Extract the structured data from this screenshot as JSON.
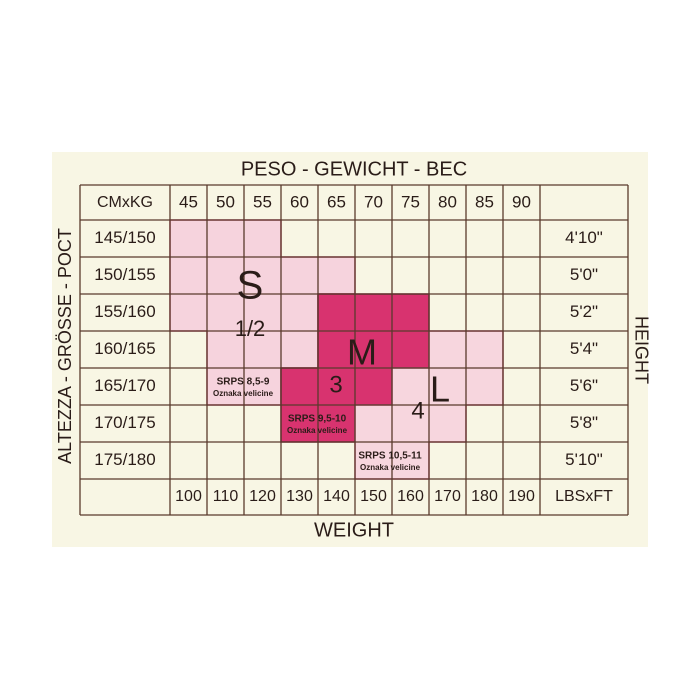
{
  "header": {
    "title": "PESO - GEWICHT - BEC",
    "footer": "WEIGHT",
    "left": "ALTEZZA - GRÖSSE - POCT",
    "right": "HEIGHT"
  },
  "table": {
    "corner": "CMxKG",
    "unit": "LBSxFT",
    "kg": [
      "45",
      "50",
      "55",
      "60",
      "65",
      "70",
      "75",
      "80",
      "85",
      "90"
    ],
    "lbs": [
      "100",
      "110",
      "120",
      "130",
      "140",
      "150",
      "160",
      "170",
      "180",
      "190"
    ],
    "cm": [
      "145/150",
      "150/155",
      "155/160",
      "160/165",
      "165/170",
      "170/175",
      "175/180"
    ],
    "feet": [
      "4'10\"",
      "5'0\"",
      "5'2\"",
      "5'4\"",
      "5'6\"",
      "5'8\"",
      "5'10\""
    ]
  },
  "sizes": [
    {
      "letter": "S",
      "number": "1/2",
      "code": "SRPS 8,5-9",
      "note": "Oznaka velicine"
    },
    {
      "letter": "M",
      "number": "3",
      "code": "SRPS 9,5-10",
      "note": "Oznaka velicine"
    },
    {
      "letter": "L",
      "number": "4",
      "code": "SRPS 10,5-11",
      "note": "Oznaka velicine"
    }
  ]
}
